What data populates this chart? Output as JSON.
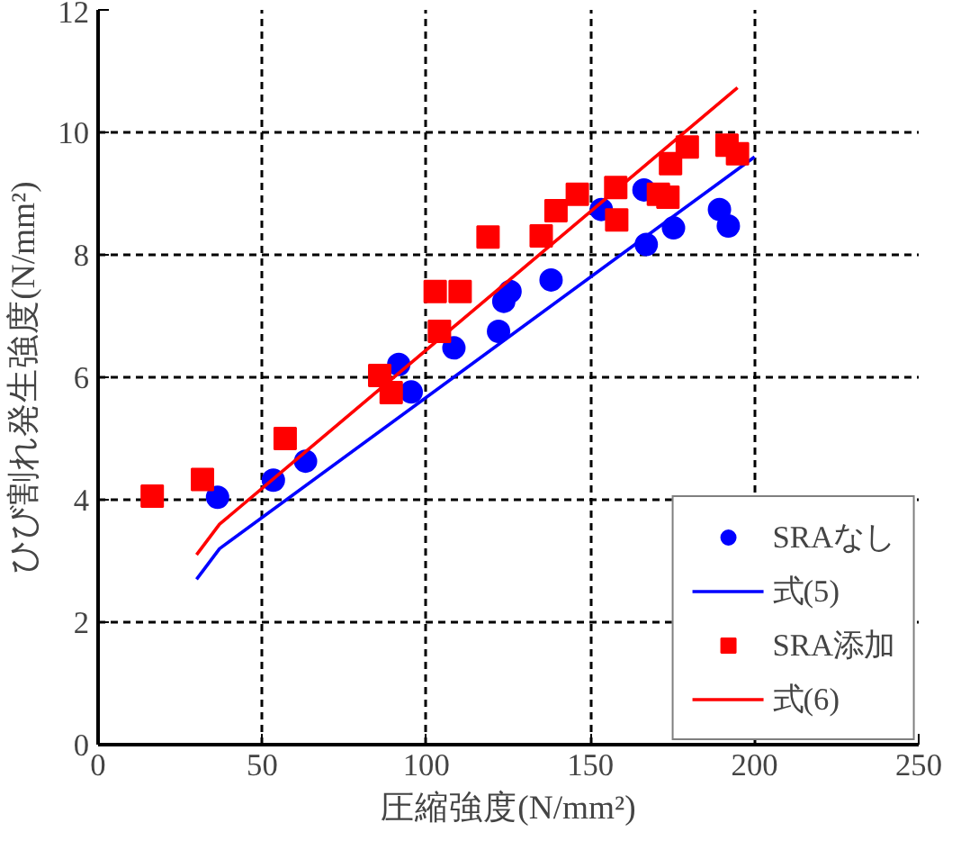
{
  "chart_data": {
    "type": "scatter",
    "xlabel": "圧縮強度(N/mm²)",
    "ylabel": "ひび割れ発生強度(N/mm²)",
    "xlim": [
      0,
      250
    ],
    "ylim": [
      0,
      12
    ],
    "xticks": [
      0,
      50,
      100,
      150,
      200,
      250
    ],
    "yticks": [
      0,
      2,
      4,
      6,
      8,
      10,
      12
    ],
    "grid": true,
    "legend": "bottom right",
    "series": [
      {
        "name": "SRAなし",
        "marker": "circle",
        "color": "#0000ff",
        "x": [
          36.4,
          53.4,
          63.2,
          91.6,
          95.4,
          108.4,
          122,
          123.6,
          125.5,
          138,
          153.3,
          166.3,
          167,
          175.3,
          189.3,
          192
        ],
        "values": [
          4.04,
          4.32,
          4.63,
          6.21,
          5.76,
          6.48,
          6.75,
          7.24,
          7.4,
          7.59,
          8.74,
          9.06,
          8.17,
          8.44,
          8.74,
          8.47
        ]
      },
      {
        "name": "式(5)",
        "type": "line",
        "line_style": "solid",
        "color": "#0000ff",
        "x": [
          30,
          37,
          200
        ],
        "values": [
          2.7,
          3.2,
          9.6
        ]
      },
      {
        "name": "SRA添加",
        "marker": "square",
        "color": "#ff0000",
        "x": [
          16.5,
          31.8,
          57,
          85.8,
          89.3,
          104,
          102.7,
          110.3,
          118.8,
          135,
          139.5,
          146,
          157.7,
          158,
          170.7,
          173.6,
          174.4,
          179.5,
          191.6,
          194.8
        ],
        "values": [
          4.06,
          4.33,
          5.0,
          6.03,
          5.75,
          6.75,
          7.4,
          7.4,
          8.29,
          8.31,
          8.72,
          8.99,
          9.1,
          8.57,
          8.99,
          8.94,
          9.49,
          9.76,
          9.79,
          9.65
        ]
      },
      {
        "name": "式(6)",
        "type": "line",
        "line_style": "solid",
        "color": "#ff0000",
        "x": [
          30,
          37,
          194.8
        ],
        "values": [
          3.1,
          3.6,
          10.73
        ]
      }
    ]
  }
}
